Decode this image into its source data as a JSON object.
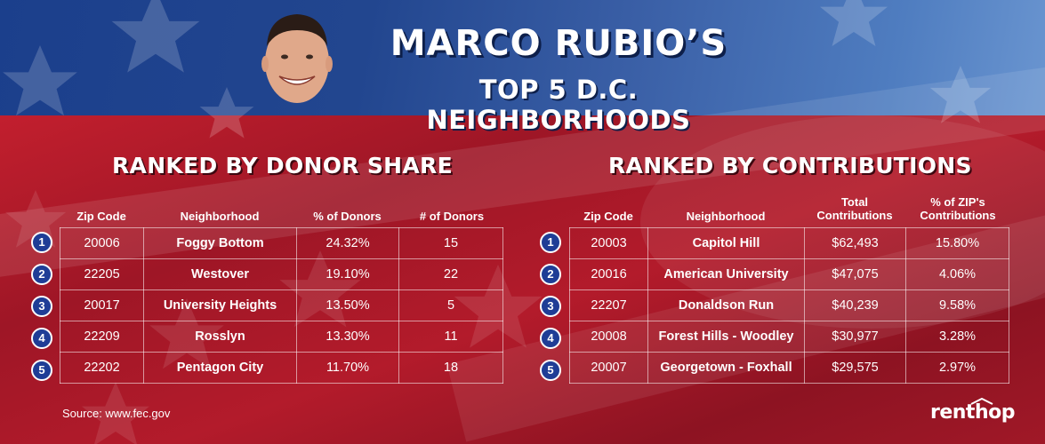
{
  "header": {
    "title": "MARCO RUBIO’S",
    "subtitle": "TOP 5 D.C. NEIGHBORHOODS"
  },
  "left_panel": {
    "heading": "RANKED BY DONOR SHARE",
    "columns": [
      "Zip Code",
      "Neighborhood",
      "% of Donors",
      "# of Donors"
    ],
    "rows": [
      {
        "rank": "1",
        "zip": "20006",
        "neighborhood": "Foggy Bottom",
        "pct": "24.32%",
        "count": "15"
      },
      {
        "rank": "2",
        "zip": "22205",
        "neighborhood": "Westover",
        "pct": "19.10%",
        "count": "22"
      },
      {
        "rank": "3",
        "zip": "20017",
        "neighborhood": "University Heights",
        "pct": "13.50%",
        "count": "5"
      },
      {
        "rank": "4",
        "zip": "22209",
        "neighborhood": "Rosslyn",
        "pct": "13.30%",
        "count": "11"
      },
      {
        "rank": "5",
        "zip": "22202",
        "neighborhood": "Pentagon City",
        "pct": "11.70%",
        "count": "18"
      }
    ]
  },
  "right_panel": {
    "heading": "RANKED BY CONTRIBUTIONS",
    "columns": [
      "Zip Code",
      "Neighborhood",
      "Total Contributions",
      "% of ZIP's Contributions"
    ],
    "rows": [
      {
        "rank": "1",
        "zip": "20003",
        "neighborhood": "Capitol Hill",
        "total": "$62,493",
        "pct": "15.80%"
      },
      {
        "rank": "2",
        "zip": "20016",
        "neighborhood": "American University",
        "total": "$47,075",
        "pct": "4.06%"
      },
      {
        "rank": "3",
        "zip": "22207",
        "neighborhood": "Donaldson Run",
        "total": "$40,239",
        "pct": "9.58%"
      },
      {
        "rank": "4",
        "zip": "20008",
        "neighborhood": "Forest Hills - Woodley",
        "total": "$30,977",
        "pct": "3.28%"
      },
      {
        "rank": "5",
        "zip": "20007",
        "neighborhood": "Georgetown - Foxhall",
        "total": "$29,575",
        "pct": "2.97%"
      }
    ]
  },
  "footer": {
    "source": "Source: www.fec.gov",
    "logo": "renthop"
  },
  "colors": {
    "blue": "#1f3d96",
    "red": "#b31b2b",
    "text": "#ffffff"
  }
}
